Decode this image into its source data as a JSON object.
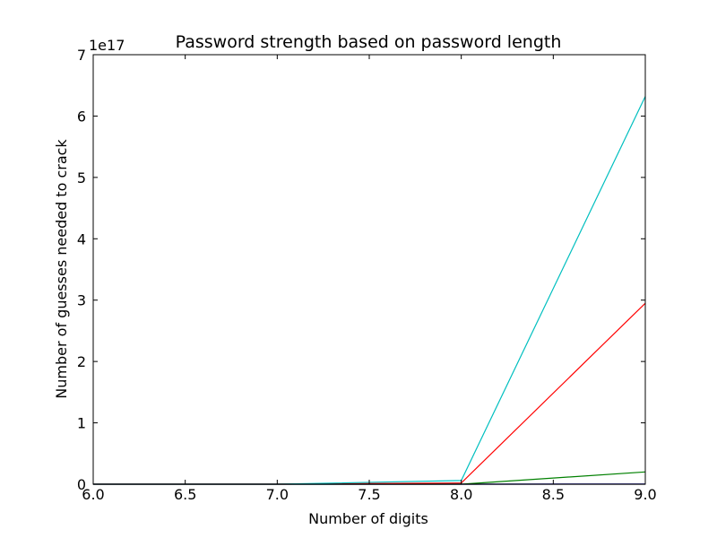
{
  "chart_data": {
    "type": "line",
    "title": "Password strength based on password length",
    "xlabel": "Number of digits",
    "ylabel": "Number of guesses needed to crack",
    "y_multiplier_label": "1e17",
    "xlim": [
      6.0,
      9.0
    ],
    "ylim": [
      0,
      7
    ],
    "y_unit_scale": "1e17",
    "x_ticks": [
      "6.0",
      "6.5",
      "7.0",
      "7.5",
      "8.0",
      "8.5",
      "9.0"
    ],
    "y_ticks": [
      "0",
      "1",
      "2",
      "3",
      "4",
      "5",
      "6",
      "7"
    ],
    "grid": false,
    "x": [
      6,
      7,
      8,
      9
    ],
    "series": [
      {
        "color": "#0000ff",
        "values": [
          0.0,
          0.0,
          0.0,
          0.003
        ]
      },
      {
        "color": "#008000",
        "values": [
          0.0,
          0.0,
          0.0,
          0.2
        ]
      },
      {
        "color": "#ff0000",
        "values": [
          0.0,
          0.0,
          0.02,
          2.95
        ]
      },
      {
        "color": "#00bfbf",
        "values": [
          0.0,
          0.0,
          0.06,
          6.32
        ]
      },
      {
        "color": "#000000",
        "values": [
          0.0,
          0.0,
          0.0,
          0.0
        ]
      }
    ]
  }
}
